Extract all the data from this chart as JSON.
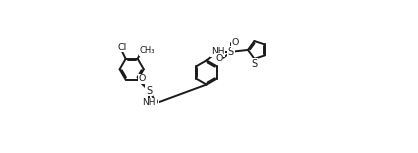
{
  "background_color": "#ffffff",
  "line_color": "#1a1a1a",
  "lw": 1.4,
  "figsize": [
    4.18,
    1.53
  ],
  "dpi": 100,
  "xlim": [
    0,
    13.5
  ],
  "ylim": [
    0,
    9.5
  ]
}
